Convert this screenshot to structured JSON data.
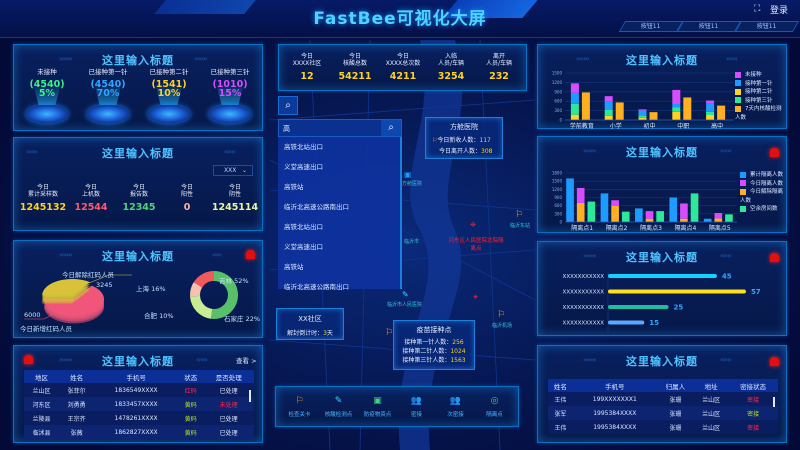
{
  "header": {
    "title": "FastBee可视化大屏",
    "login": "登录",
    "buttons": [
      "按钮11",
      "按钮11",
      "按钮11"
    ]
  },
  "panel_title": "这里输入标题",
  "vaccine": {
    "items": [
      {
        "label": "未接种",
        "count": "(4540)",
        "pct": "5%",
        "color": "#3cf08c"
      },
      {
        "label": "已接种第一针",
        "count": "(4540)",
        "pct": "70%",
        "color": "#2fa6ff"
      },
      {
        "label": "已接种第二针",
        "count": "(1541)",
        "pct": "10%",
        "color": "#ffd21e"
      },
      {
        "label": "已接种第三针",
        "count": "(1010)",
        "pct": "15%",
        "color": "#d84cff"
      }
    ]
  },
  "sampling": {
    "select": "XXX",
    "stats": [
      {
        "l1": "今日",
        "l2": "累计采样数",
        "value": "1245132",
        "color": "#ffd21e"
      },
      {
        "l1": "今日",
        "l2": "上机数",
        "value": "12544",
        "color": "#ff5a6a"
      },
      {
        "l1": "今日",
        "l2": "报告数",
        "value": "12345",
        "color": "#4cd47a"
      },
      {
        "l1": "今日",
        "l2": "阳性",
        "value": "0",
        "color": "#ffb0a0"
      },
      {
        "l1": "今日",
        "l2": "阴性",
        "value": "1245114",
        "color": "#e8f5a0"
      }
    ]
  },
  "redcode": {
    "pie_labels": {
      "remove": "今日解除红码人员",
      "remove_value": "3245",
      "new_value": "6000",
      "new": "今日新增红码人员"
    },
    "donut_labels": [
      "吉林 52%",
      "石家庄 22%",
      "合肥 10%",
      "上海 16%"
    ]
  },
  "left_table": {
    "view_more": "查看 >",
    "columns": [
      "地区",
      "姓名",
      "手机号",
      "状态",
      "是否处理"
    ],
    "rows": [
      [
        "兰山区",
        "张菲尔",
        "1836549XXXX",
        "红码",
        "已处理"
      ],
      [
        "河东区",
        "刘勇勇",
        "1833457XXXX",
        "黄码",
        "未处理"
      ],
      [
        "兰陵县",
        "王宗齐",
        "1478261XXXX",
        "黄码",
        "已处理"
      ],
      [
        "临沭县",
        "张薇",
        "1862827XXXX",
        "黄码",
        "已处理"
      ]
    ],
    "status_colors": {
      "红码": "#ff2a4a",
      "黄码": "#b8e02a",
      "未处理": "#ff2a4a",
      "已处理": "#e0ebff"
    }
  },
  "center_stats": [
    {
      "l1": "今日",
      "l2": "XXXX社区",
      "value": "12"
    },
    {
      "l1": "今日",
      "l2": "核酸总数",
      "value": "54211"
    },
    {
      "l1": "今日",
      "l2": "XXXX总次数",
      "value": "4211"
    },
    {
      "l1": "入临",
      "l2": "人员/车辆",
      "value": "3254"
    },
    {
      "l1": "离开",
      "l2": "人员/车辆",
      "value": "232"
    }
  ],
  "search": {
    "value": "高",
    "results": [
      "高铁北站出口",
      "义堂高速出口",
      "高铁站",
      "临沂北高速公路南出口",
      "高铁北站出口",
      "义堂高速出口",
      "高铁站",
      "临沂北高速公路南出口"
    ]
  },
  "map": {
    "hospital": {
      "title": "方舱医院",
      "rows": [
        {
          "label": "今日新收人数：",
          "value": "117"
        },
        {
          "label": "今日离开人数：",
          "value": "308"
        }
      ]
    },
    "community": {
      "title": "XX社区",
      "label": "解封倒计时：",
      "value": "3",
      "unit": "天"
    },
    "vaccination": {
      "title": "疫苗接种点",
      "rows": [
        {
          "label": "接种第一针人数：",
          "value": "256"
        },
        {
          "label": "接种第二针人数：",
          "value": "1024"
        },
        {
          "label": "接种第三针人数：",
          "value": "1563"
        }
      ]
    },
    "labels": {
      "fangcang": "方舱医院",
      "quarantine": "河东区人民医院北院隔离点",
      "east": "临沂东站",
      "airport": "临沂机场",
      "city": "临沂市",
      "people_hospital": "临沂市人民医院"
    },
    "toolbar": [
      {
        "icon": "flag-icon",
        "label": "检查关卡",
        "color": "#ffa31a"
      },
      {
        "icon": "test-tube-icon",
        "label": "核酸检测点",
        "color": "#22e0ff"
      },
      {
        "icon": "supplies-box-icon",
        "label": "防疫物资点",
        "color": "#3ed87a"
      },
      {
        "icon": "close-contact-icon",
        "label": "密接",
        "color": "#ff3040"
      },
      {
        "icon": "secondary-contact-icon",
        "label": "次密接",
        "color": "#ffa31a"
      },
      {
        "icon": "quarantine-point-icon",
        "label": "隔离点",
        "color": "#3ed87a"
      }
    ]
  },
  "chart_data": [
    {
      "type": "bar",
      "stacked": true,
      "categories": [
        "学前教育",
        "小学",
        "初中",
        "中职",
        "高中"
      ],
      "ylim": [
        0,
        1500
      ],
      "yticks": [
        0,
        300,
        600,
        900,
        1200,
        1500
      ],
      "legend": "right",
      "series": [
        {
          "name": "未接种",
          "color": "#d84cff",
          "stack": "a",
          "values": [
            300,
            180,
            40,
            450,
            100
          ]
        },
        {
          "name": "接种第一针",
          "color": "#1e9bff",
          "stack": "a",
          "values": [
            350,
            260,
            160,
            100,
            260
          ]
        },
        {
          "name": "接种第二针",
          "color": "#ffd21e",
          "stack": "a",
          "values": [
            170,
            130,
            70,
            260,
            160
          ]
        },
        {
          "name": "接种第三针",
          "color": "#2ee89a",
          "stack": "a",
          "values": [
            350,
            190,
            70,
            150,
            100
          ]
        },
        {
          "name": "7天内核酸检测人数",
          "color": "#ffb020",
          "stack": "b",
          "values": [
            880,
            560,
            250,
            720,
            460
          ]
        }
      ]
    },
    {
      "type": "bar",
      "stacked": true,
      "categories": [
        "隔离点1",
        "隔离点2",
        "隔离点3",
        "隔离点4",
        "隔离点5"
      ],
      "ylim": [
        0,
        1800
      ],
      "yticks": [
        0,
        300,
        600,
        900,
        1200,
        1500,
        1800
      ],
      "legend": "right",
      "series": [
        {
          "name": "累计隔离人数",
          "color": "#1e9bff",
          "stack": "a",
          "values": [
            1600,
            1050,
            500,
            900,
            120
          ]
        },
        {
          "name": "今日隔离人数",
          "color": "#d84cff",
          "stack": "b",
          "values": [
            550,
            200,
            280,
            560,
            200
          ]
        },
        {
          "name": "今日解除隔离人数",
          "color": "#ffb020",
          "stack": "b",
          "values": [
            700,
            600,
            120,
            120,
            130
          ]
        },
        {
          "name": "空余房间数",
          "color": "#2ee89a",
          "stack": "c",
          "values": [
            750,
            380,
            400,
            1050,
            280
          ]
        }
      ]
    },
    {
      "type": "bar",
      "orientation": "horizontal",
      "categories": [
        "XXXXXXXXXXX",
        "XXXXXXXXXXX",
        "XXXXXXXXXXX",
        "XXXXXXXXXXX"
      ],
      "values": [
        45,
        57,
        25,
        15
      ],
      "colors": [
        "#14d2ff",
        "#ffe01a",
        "#1ebfa0",
        "#5aa8ff"
      ]
    },
    {
      "type": "pie",
      "style": "3d",
      "slices": [
        {
          "name": "今日新增红码人员",
          "value": 6000,
          "color": "#f2557a"
        },
        {
          "name": "今日解除红码人员",
          "value": 3245,
          "color": "#d8c23a"
        }
      ]
    },
    {
      "type": "pie",
      "style": "donut",
      "slices": [
        {
          "name": "吉林",
          "value": 52,
          "color": "#58c06a"
        },
        {
          "name": "石家庄",
          "value": 22,
          "color": "#c8eb94"
        },
        {
          "name": "合肥",
          "value": 10,
          "color": "#f8c0ae"
        },
        {
          "name": "上海",
          "value": 16,
          "color": "#f25a5a"
        }
      ]
    }
  ],
  "right_table": {
    "columns": [
      "姓名",
      "手机号",
      "归属人",
      "地址",
      "密接状态"
    ],
    "rows": [
      [
        "王伟",
        "199XXXXXXX1",
        "张珊",
        "兰山区",
        "密接"
      ],
      [
        "张军",
        "1995384XXXX",
        "张珊",
        "兰山区",
        "密接"
      ],
      [
        "王伟",
        "1995384XXXX",
        "张珊",
        "兰山区",
        "密接"
      ]
    ],
    "status_colors": [
      "#ff2a4a",
      "#b8e02a",
      "#ff2a4a"
    ]
  }
}
